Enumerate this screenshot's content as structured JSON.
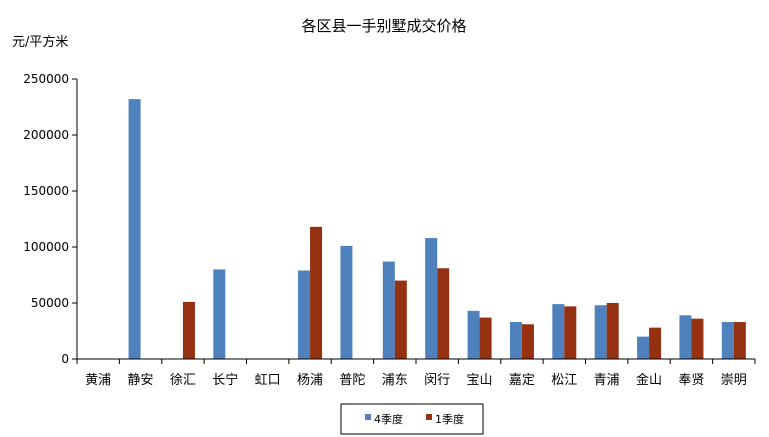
{
  "chart_data": {
    "type": "bar",
    "title": "各区县一手别墅成交价格",
    "ylabel": "元/平方米",
    "xlabel": "",
    "ylim": [
      0,
      250000
    ],
    "yticks": [
      0,
      50000,
      100000,
      150000,
      200000,
      250000
    ],
    "categories": [
      "黄浦",
      "静安",
      "徐汇",
      "长宁",
      "虹口",
      "杨浦",
      "普陀",
      "浦东",
      "闵行",
      "宝山",
      "嘉定",
      "松江",
      "青浦",
      "金山",
      "奉贤",
      "崇明"
    ],
    "series": [
      {
        "name": "4季度",
        "color": "#4F81BD",
        "values": [
          null,
          232000,
          null,
          80000,
          null,
          79000,
          101000,
          87000,
          108000,
          43000,
          33000,
          49000,
          48000,
          20000,
          39000,
          33000
        ]
      },
      {
        "name": "1季度",
        "color": "#953010",
        "values": [
          null,
          null,
          51000,
          null,
          null,
          118000,
          null,
          70000,
          81000,
          37000,
          31000,
          47000,
          50000,
          28000,
          36000,
          33000
        ]
      }
    ],
    "grid": false,
    "legend": "bottom-center"
  }
}
